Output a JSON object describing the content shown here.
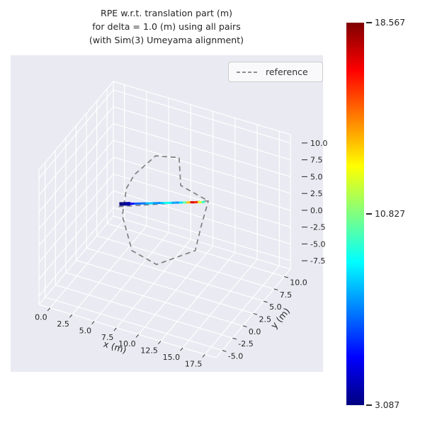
{
  "chart_data": {
    "type": "line",
    "projection": "3d",
    "title_lines": [
      "RPE w.r.t. translation part (m)",
      "for delta = 1.0 (m) using all pairs",
      "(with Sim(3) Umeyama alignment)"
    ],
    "axes": {
      "x": {
        "label": "x (m)",
        "ticks": [
          0.0,
          2.5,
          5.0,
          7.5,
          10.0,
          12.5,
          15.0,
          17.5
        ],
        "lim": [
          -1.25,
          18.75
        ]
      },
      "y": {
        "label": "y (m)",
        "ticks": [
          -5.0,
          -2.5,
          0.0,
          2.5,
          5.0,
          7.5,
          10.0
        ],
        "lim": [
          -6.5,
          11.5
        ]
      },
      "z": {
        "label": "",
        "ticks": [
          10.0,
          7.5,
          5.0,
          2.5,
          0.0,
          -2.5,
          -5.0,
          -7.5
        ],
        "lim": [
          -8.75,
          11.25
        ]
      }
    },
    "grid": true,
    "panel_color": "#eaeaf2",
    "grid_color": "#ffffff",
    "legend": {
      "position": "upper right",
      "items": [
        {
          "label": "reference",
          "line_style": "dashed",
          "color": "#7f7f7f"
        }
      ]
    },
    "colorbar": {
      "colormap": "jet",
      "min": 3.087,
      "max": 18.567,
      "ticks": [
        {
          "value": 18.567,
          "label": "18.567"
        },
        {
          "value": 10.827,
          "label": "10.827"
        },
        {
          "value": 3.087,
          "label": "3.087"
        }
      ]
    },
    "series": [
      {
        "name": "reference",
        "type": "dashed_line",
        "color": "#7f7f7f",
        "points": [
          [
            2.0,
            5.8,
            -1.9
          ],
          [
            11.3,
            7.6,
            1.3
          ],
          [
            8.0,
            8.0,
            2.0
          ],
          [
            6.5,
            10.8,
            3.5
          ],
          [
            4.0,
            10.5,
            3.0
          ],
          [
            3.0,
            7.5,
            2.0
          ],
          [
            2.8,
            6.0,
            1.0
          ],
          [
            3.5,
            3.5,
            -1.0
          ],
          [
            6.0,
            0.5,
            -3.0
          ],
          [
            9.0,
            0.0,
            -3.5
          ],
          [
            12.3,
            2.3,
            -1.8
          ],
          [
            11.8,
            4.8,
            -0.2
          ],
          [
            11.3,
            7.6,
            1.3
          ]
        ]
      },
      {
        "name": "rpe",
        "type": "colormapped_line",
        "colormap": "jet",
        "points": [
          [
            2.0,
            6.0,
            -1.66
          ],
          [
            2.39,
            6.07,
            -1.54
          ],
          [
            2.78,
            6.13,
            -1.42
          ],
          [
            3.17,
            6.2,
            -1.3
          ],
          [
            3.57,
            6.26,
            -1.18
          ],
          [
            3.96,
            6.33,
            -1.06
          ],
          [
            4.35,
            6.39,
            -0.94
          ],
          [
            4.74,
            6.46,
            -0.82
          ],
          [
            5.13,
            6.52,
            -0.7
          ],
          [
            5.52,
            6.59,
            -0.58
          ],
          [
            5.91,
            6.65,
            -0.46
          ],
          [
            6.3,
            6.72,
            -0.34
          ],
          [
            6.7,
            6.78,
            -0.22
          ],
          [
            7.09,
            6.85,
            -0.1
          ],
          [
            7.48,
            6.91,
            0.02
          ],
          [
            7.87,
            6.98,
            0.14
          ],
          [
            8.26,
            7.04,
            0.26
          ],
          [
            8.65,
            7.11,
            0.38
          ],
          [
            9.04,
            7.17,
            0.5
          ],
          [
            9.43,
            7.24,
            0.62
          ],
          [
            9.83,
            7.3,
            0.74
          ],
          [
            10.22,
            7.37,
            0.86
          ],
          [
            10.61,
            7.43,
            0.98
          ],
          [
            11.0,
            7.5,
            1.1
          ]
        ],
        "values": [
          3.087,
          3.2,
          3.5,
          4.2,
          6.0,
          6.8,
          6.3,
          7.2,
          8.5,
          7.8,
          6.9,
          7.4,
          8.8,
          9.6,
          8.2,
          7.0,
          7.7,
          9.2,
          11.5,
          15.8,
          18.567,
          13.5,
          10.8,
          9.0
        ]
      }
    ]
  }
}
